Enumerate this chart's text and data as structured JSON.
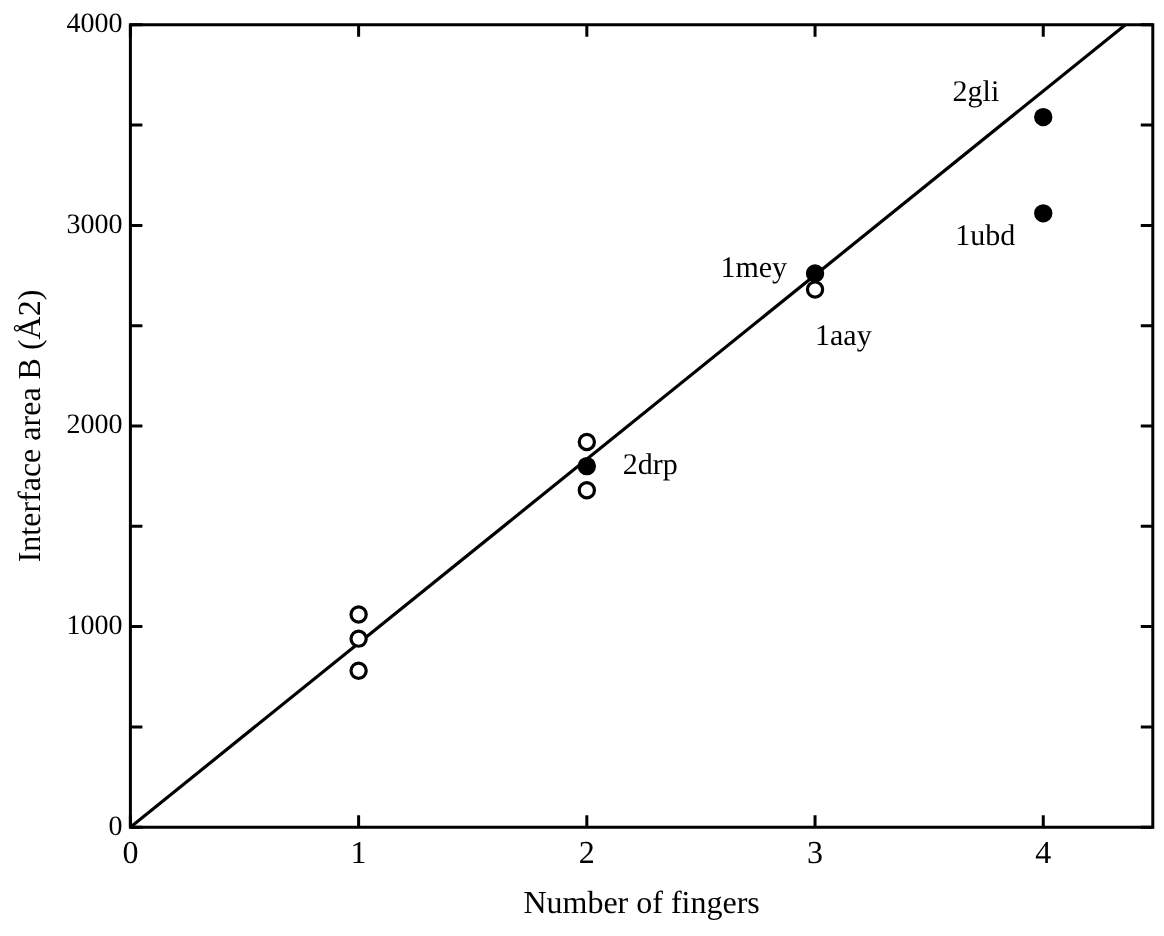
{
  "chart_data": {
    "type": "scatter",
    "xlabel": "Number of fingers",
    "ylabel": "Interface area B (Å2)",
    "xlim": [
      0,
      4.48
    ],
    "ylim": [
      0,
      4000
    ],
    "xticks": [
      0,
      1,
      2,
      3,
      4
    ],
    "yticks": [
      0,
      {
        "value": 500,
        "label": null
      },
      1000,
      {
        "value": 1500,
        "label": null
      },
      2000,
      {
        "value": 2500,
        "label": null
      },
      3000,
      {
        "value": 3500,
        "label": null
      },
      4000
    ],
    "grid": false,
    "legend": false,
    "marker": "circle",
    "series": [
      {
        "type": "scatter",
        "color": "#000000",
        "x": [
          1,
          1,
          1,
          2,
          2,
          3
        ],
        "values": [
          1060,
          940,
          780,
          1920,
          1680,
          2680
        ]
      },
      {
        "type": "scatter",
        "color": "#000000",
        "x": [
          2,
          3,
          4,
          4
        ],
        "values": [
          1800,
          2760,
          3540,
          3060
        ]
      },
      {
        "type": "line",
        "color": "#000000",
        "marker": "none",
        "line_style": "solid",
        "x": [
          0,
          4.36
        ],
        "values": [
          0,
          4000
        ]
      }
    ],
    "annotations": [
      {
        "text": "2gli",
        "x": 4,
        "y": 3540
      },
      {
        "text": "1ubd",
        "x": 4,
        "y": 3060
      },
      {
        "text": "1mey",
        "x": 3,
        "y": 2760
      },
      {
        "text": "1aay",
        "x": 3,
        "y": 2680
      },
      {
        "text": "2drp",
        "x": 2,
        "y": 1800
      }
    ]
  }
}
